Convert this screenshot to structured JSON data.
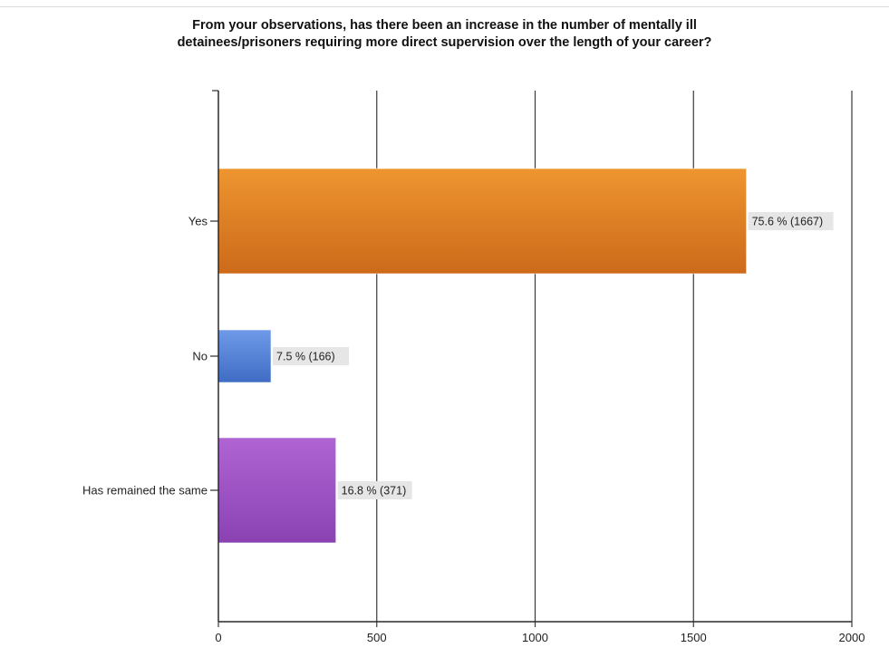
{
  "chart_data": {
    "type": "bar",
    "orientation": "horizontal",
    "title_lines": [
      "From your observations, has there been an increase in the number of mentally ill",
      "detainees/prisoners requiring more direct supervision over the length of your career?"
    ],
    "categories": [
      "Yes",
      "No",
      "Has remained the same"
    ],
    "values": [
      1667,
      166,
      371
    ],
    "data_labels": [
      "75.6 % (1667)",
      "7.5 % (166)",
      "16.8 % (371)"
    ],
    "colors": [
      {
        "light": "#ee9530",
        "dark": "#cc6a1a"
      },
      {
        "light": "#6f9ae8",
        "dark": "#3f6dc4"
      },
      {
        "light": "#b064d4",
        "dark": "#8a42b2"
      }
    ],
    "xticks": [
      "0",
      "500",
      "1000",
      "1500",
      "2000"
    ],
    "xlim": [
      0,
      2000
    ],
    "grid": true,
    "xlabel": "",
    "ylabel": ""
  }
}
